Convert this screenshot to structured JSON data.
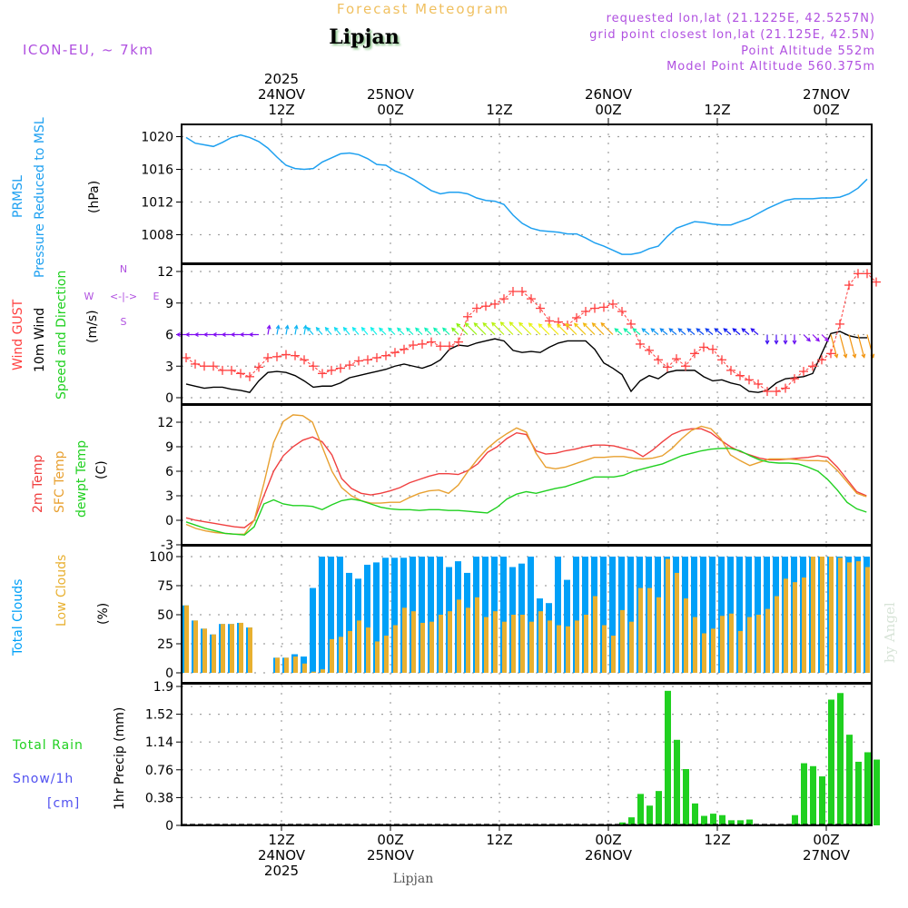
{
  "header": {
    "title": "Forecast Meteogram",
    "location": "Lipjan",
    "model": "ICON-EU, ~ 7km",
    "requested": "requested lon,lat (21.1225E, 42.5257N)",
    "grid_point": "grid point closest lon,lat (21.125E, 42.5N)",
    "point_altitude": "Point Altitude 552m",
    "model_altitude": "Model Point Altitude 560.375m",
    "footer_location": "Lipjan",
    "credit": "by Angel"
  },
  "colors": {
    "title": "#f0c060",
    "meta": "#b050e0",
    "pressure": "#1ea0f0",
    "gust": "#ff4040",
    "wind": "#000000",
    "t2m": "#f04040",
    "tsfc": "#e8a030",
    "dewpt": "#20d020",
    "total_clouds": "#00a0f8",
    "low_clouds": "#e8b030",
    "rain": "#20d020",
    "snow": "#5050f0",
    "grid": "#a0a0a0"
  },
  "time_axis": {
    "start": "24NOV 01Z",
    "hours": 76,
    "top_labels": [
      {
        "hour": 11,
        "lines": [
          "2025",
          "24NOV",
          "12Z"
        ]
      },
      {
        "hour": 23,
        "lines": [
          "25NOV",
          "00Z"
        ]
      },
      {
        "hour": 35,
        "lines": [
          "12Z"
        ]
      },
      {
        "hour": 47,
        "lines": [
          "26NOV",
          "00Z"
        ]
      },
      {
        "hour": 59,
        "lines": [
          "12Z"
        ]
      },
      {
        "hour": 71,
        "lines": [
          "27NOV",
          "00Z"
        ]
      }
    ],
    "bottom_labels": [
      {
        "hour": 11,
        "lines": [
          "12Z",
          "24NOV",
          "2025"
        ]
      },
      {
        "hour": 23,
        "lines": [
          "00Z",
          "25NOV"
        ]
      },
      {
        "hour": 35,
        "lines": [
          "12Z"
        ]
      },
      {
        "hour": 47,
        "lines": [
          "00Z",
          "26NOV"
        ]
      },
      {
        "hour": 59,
        "lines": [
          "12Z"
        ]
      },
      {
        "hour": 71,
        "lines": [
          "00Z",
          "27NOV"
        ]
      }
    ]
  },
  "panels": {
    "pressure": {
      "labels": [
        "PRMSL",
        "Pressure Reduced to MSL"
      ],
      "unit": "(hPa)"
    },
    "wind": {
      "labels": [
        "Wind GUST",
        "10m Wind",
        "Speed and Direction"
      ],
      "unit": "(m/s)",
      "compass": {
        "n": "N",
        "s": "S",
        "w": "W",
        "e": "E"
      }
    },
    "temp": {
      "labels": [
        "2m Temp",
        "SFC Temp",
        "dewpt Temp"
      ],
      "unit": "(C)"
    },
    "clouds": {
      "labels": [
        "Total Clouds",
        "Low Clouds"
      ],
      "unit": "(%)"
    },
    "precip": {
      "labels": [
        "Total  Rain",
        "Snow/1h",
        "[cm]"
      ],
      "unit": "1hr Precip (mm)"
    }
  },
  "chart_data": [
    {
      "type": "line",
      "title": "PRMSL Pressure Reduced to MSL",
      "ylabel": "(hPa)",
      "ylim": [
        1004.5,
        1021.5
      ],
      "yticks": [
        1008,
        1012,
        1016,
        1020
      ],
      "series": [
        {
          "name": "PRMSL",
          "values": [
            1019.9,
            1019.2,
            1019.0,
            1018.8,
            1019.3,
            1019.9,
            1020.2,
            1019.9,
            1019.4,
            1018.6,
            1017.5,
            1016.5,
            1016.1,
            1016.0,
            1016.1,
            1016.9,
            1017.4,
            1017.9,
            1018.0,
            1017.8,
            1017.3,
            1016.6,
            1016.5,
            1015.8,
            1015.4,
            1014.8,
            1014.1,
            1013.4,
            1013.0,
            1013.2,
            1013.2,
            1013.0,
            1012.5,
            1012.2,
            1012.1,
            1011.7,
            1010.4,
            1009.4,
            1008.8,
            1008.5,
            1008.4,
            1008.3,
            1008.1,
            1008.1,
            1007.6,
            1007.0,
            1006.6,
            1006.1,
            1005.6,
            1005.6,
            1005.8,
            1006.3,
            1006.6,
            1007.8,
            1008.8,
            1009.2,
            1009.6,
            1009.5,
            1009.3,
            1009.2,
            1009.2,
            1009.6,
            1010.0,
            1010.6,
            1011.2,
            1011.7,
            1012.2,
            1012.4,
            1012.4,
            1012.4,
            1012.5,
            1012.5,
            1012.6,
            1013.0,
            1013.7,
            1014.8
          ]
        }
      ]
    },
    {
      "type": "line",
      "title": "Wind GUST / 10m Wind Speed and Direction",
      "ylabel": "(m/s)",
      "ylim": [
        -0.5,
        12.8
      ],
      "yticks": [
        0,
        3,
        6,
        9,
        12
      ],
      "series": [
        {
          "name": "Wind GUST",
          "values": [
            3.8,
            3.2,
            3.0,
            3.0,
            2.6,
            2.6,
            2.3,
            2.0,
            2.9,
            3.8,
            3.9,
            4.1,
            4.0,
            3.6,
            3.0,
            2.3,
            2.6,
            2.8,
            3.1,
            3.5,
            3.6,
            3.8,
            4.0,
            4.3,
            4.6,
            5.0,
            5.1,
            5.3,
            4.9,
            4.9,
            5.3,
            7.7,
            8.5,
            8.7,
            8.9,
            9.4,
            10.1,
            10.1,
            9.4,
            8.5,
            7.3,
            7.2,
            6.9,
            7.6,
            8.2,
            8.5,
            8.6,
            8.9,
            8.2,
            7.0,
            5.1,
            4.5,
            3.6,
            2.9,
            3.7,
            3.0,
            4.2,
            4.8,
            4.6,
            3.6,
            2.6,
            2.1,
            1.7,
            1.3,
            0.6,
            0.6,
            0.9,
            1.8,
            2.5,
            3.0,
            3.6,
            4.2,
            7.0,
            10.7,
            11.8,
            11.8,
            11.0
          ]
        },
        {
          "name": "10m Wind",
          "values": [
            1.3,
            1.1,
            0.9,
            1.0,
            1.0,
            0.8,
            0.7,
            0.5,
            1.6,
            2.4,
            2.5,
            2.4,
            2.1,
            1.6,
            1.0,
            1.1,
            1.1,
            1.4,
            1.9,
            2.1,
            2.3,
            2.5,
            2.7,
            3.0,
            3.2,
            3.0,
            2.8,
            3.1,
            3.6,
            4.6,
            5.0,
            4.9,
            5.2,
            5.4,
            5.6,
            5.4,
            4.5,
            4.3,
            4.4,
            4.3,
            4.8,
            5.2,
            5.4,
            5.4,
            5.4,
            4.6,
            3.3,
            2.8,
            2.2,
            0.6,
            1.6,
            2.1,
            1.8,
            2.4,
            2.6,
            2.6,
            2.6,
            2.0,
            1.6,
            1.7,
            1.4,
            1.2,
            0.6,
            0.5,
            0.7,
            1.4,
            1.8,
            1.9,
            2.0,
            2.3,
            4.2,
            6.1,
            6.3,
            5.9,
            5.7,
            5.7
          ]
        }
      ],
      "wind_arrows_y": 6,
      "wind_arrows": "color-coded direction arrows along y=6"
    },
    {
      "type": "line",
      "title": "2m Temp / SFC Temp / dewpt Temp",
      "ylabel": "(C)",
      "ylim": [
        -3,
        14
      ],
      "yticks": [
        -3,
        0,
        3,
        6,
        9,
        12
      ],
      "series": [
        {
          "name": "2m Temp",
          "values": [
            0.3,
            0.0,
            -0.2,
            -0.4,
            -0.6,
            -0.8,
            -0.9,
            0.0,
            3.0,
            6.0,
            7.9,
            9.0,
            9.8,
            10.2,
            9.6,
            8.0,
            5.1,
            3.9,
            3.3,
            3.1,
            3.3,
            3.6,
            4.0,
            4.6,
            5.0,
            5.4,
            5.7,
            5.7,
            5.6,
            6.1,
            6.9,
            8.3,
            9.0,
            10.0,
            10.7,
            10.5,
            8.5,
            8.1,
            8.2,
            8.5,
            8.7,
            9.0,
            9.2,
            9.2,
            9.1,
            8.8,
            8.5,
            7.8,
            8.6,
            9.6,
            10.5,
            11.0,
            11.2,
            11.2,
            10.7,
            9.8,
            9.0,
            8.4,
            8.0,
            7.6,
            7.4,
            7.4,
            7.5,
            7.6,
            7.7,
            7.9,
            7.7,
            6.5,
            5.0,
            3.5,
            3.0
          ]
        },
        {
          "name": "SFC Temp",
          "values": [
            -0.5,
            -1.0,
            -1.3,
            -1.5,
            -1.6,
            -1.7,
            -1.7,
            0.0,
            4.5,
            9.5,
            12.1,
            12.9,
            12.8,
            12.0,
            9.0,
            6.0,
            4.0,
            3.0,
            2.4,
            2.1,
            2.1,
            2.2,
            2.2,
            2.8,
            3.3,
            3.6,
            3.7,
            3.3,
            4.3,
            6.0,
            7.5,
            8.8,
            9.8,
            10.6,
            11.3,
            10.8,
            8.2,
            6.5,
            6.3,
            6.5,
            6.9,
            7.3,
            7.7,
            7.7,
            7.8,
            7.8,
            7.6,
            7.5,
            7.6,
            7.9,
            8.8,
            10.0,
            11.0,
            11.5,
            11.2,
            10.0,
            8.0,
            7.3,
            6.7,
            7.1,
            7.5,
            7.5,
            7.5,
            7.4,
            7.3,
            7.3,
            7.2,
            6.1,
            4.7,
            3.3,
            2.9
          ]
        },
        {
          "name": "dewpt Temp",
          "values": [
            -0.2,
            -0.6,
            -1.0,
            -1.3,
            -1.6,
            -1.7,
            -1.8,
            -0.8,
            2.0,
            2.5,
            2.0,
            1.8,
            1.8,
            1.7,
            1.3,
            1.9,
            2.4,
            2.6,
            2.4,
            2.0,
            1.6,
            1.4,
            1.3,
            1.3,
            1.2,
            1.3,
            1.3,
            1.2,
            1.2,
            1.1,
            1.0,
            0.9,
            1.6,
            2.6,
            3.2,
            3.5,
            3.3,
            3.6,
            3.9,
            4.1,
            4.5,
            4.9,
            5.3,
            5.3,
            5.3,
            5.5,
            6.0,
            6.3,
            6.6,
            6.9,
            7.4,
            7.9,
            8.2,
            8.5,
            8.7,
            8.8,
            8.8,
            8.5,
            7.9,
            7.4,
            7.1,
            7.0,
            7.0,
            6.9,
            6.5,
            6.0,
            5.0,
            3.7,
            2.2,
            1.4,
            1.0
          ]
        }
      ]
    },
    {
      "type": "bar",
      "title": "Total Clouds / Low Clouds",
      "ylabel": "(%)",
      "ylim": [
        0,
        100
      ],
      "yticks": [
        0,
        25,
        50,
        75,
        100
      ],
      "series": [
        {
          "name": "Total Clouds",
          "values": [
            58,
            45,
            38,
            33,
            42,
            42,
            43,
            39,
            0,
            0,
            13,
            13,
            16,
            14,
            73,
            100,
            100,
            100,
            86,
            81,
            93,
            95,
            99,
            99,
            99,
            100,
            100,
            100,
            100,
            91,
            96,
            86,
            100,
            100,
            100,
            100,
            91,
            94,
            100,
            64,
            60,
            100,
            80,
            100,
            100,
            100,
            100,
            100,
            100,
            100,
            100,
            100,
            100,
            100,
            100,
            100,
            100,
            100,
            100,
            100,
            100,
            100,
            100,
            100,
            100,
            100,
            100,
            100,
            100,
            100,
            100,
            100,
            100,
            100,
            100,
            100
          ]
        },
        {
          "name": "Low Clouds",
          "values": [
            58,
            45,
            38,
            33,
            42,
            42,
            43,
            39,
            0,
            0,
            13,
            13,
            14,
            8,
            1,
            3,
            29,
            31,
            36,
            45,
            39,
            27,
            32,
            41,
            56,
            53,
            43,
            44,
            50,
            53,
            63,
            56,
            65,
            48,
            53,
            44,
            50,
            50,
            44,
            53,
            45,
            41,
            40,
            45,
            50,
            66,
            41,
            32,
            54,
            44,
            73,
            73,
            65,
            98,
            86,
            64,
            48,
            34,
            38,
            49,
            51,
            36,
            48,
            50,
            55,
            66,
            81,
            78,
            82,
            100,
            100,
            100,
            99,
            95,
            96,
            91
          ]
        }
      ]
    },
    {
      "type": "bar",
      "title": "1hr Precip (mm) Total Rain / Snow/1h [cm]",
      "ylabel": "1hr Precip (mm)",
      "ylim": [
        0,
        1.9
      ],
      "yticks": [
        0,
        0.38,
        0.76,
        1.14,
        1.52,
        1.9
      ],
      "series": [
        {
          "name": "Total Rain",
          "values": [
            0,
            0,
            0,
            0,
            0,
            0,
            0,
            0,
            0,
            0,
            0,
            0,
            0,
            0,
            0,
            0,
            0,
            0,
            0,
            0,
            0,
            0,
            0,
            0,
            0,
            0,
            0,
            0,
            0,
            0,
            0,
            0.01,
            0,
            0.01,
            0.01,
            0,
            0,
            0,
            0,
            0,
            0,
            0,
            0,
            0,
            0,
            0,
            0,
            0,
            0.04,
            0.11,
            0.43,
            0.27,
            0.47,
            1.84,
            1.17,
            0.77,
            0.3,
            0.13,
            0.16,
            0.14,
            0.07,
            0.07,
            0.08,
            0,
            0,
            0,
            0,
            0.14,
            0.85,
            0.81,
            0.67,
            1.72,
            1.81,
            1.24,
            0.87,
            1.0,
            0.9
          ]
        },
        {
          "name": "Snow/1h",
          "values": []
        }
      ]
    }
  ]
}
